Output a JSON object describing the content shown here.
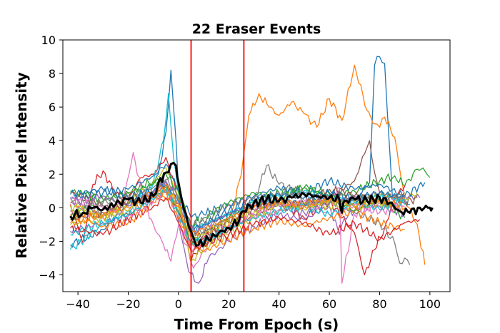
{
  "chart_data": {
    "type": "line",
    "title": "22 Eraser Events",
    "xlabel": "Time From Epoch (s)",
    "ylabel": "Relative Pixel Intensity",
    "xlim": [
      -46,
      108
    ],
    "ylim": [
      -5,
      10
    ],
    "xticks": [
      -40,
      -20,
      0,
      20,
      40,
      60,
      80,
      100
    ],
    "xtick_labels": [
      "−40",
      "−20",
      "0",
      "20",
      "40",
      "60",
      "80",
      "100"
    ],
    "yticks": [
      -4,
      -2,
      0,
      2,
      4,
      6,
      8,
      10
    ],
    "ytick_labels": [
      "−4",
      "−2",
      "0",
      "2",
      "4",
      "6",
      "8",
      "10"
    ],
    "grid": false,
    "vertical_lines": [
      {
        "x": 5,
        "color": "#ff0000"
      },
      {
        "x": 26,
        "color": "#ff0000"
      }
    ],
    "mean_series": {
      "name": "mean",
      "color": "#000000",
      "x": [
        -43,
        -38,
        -34,
        -30,
        -25,
        -20,
        -15,
        -10,
        -8,
        -5,
        -3,
        -1,
        0,
        2,
        4,
        6,
        8,
        12,
        16,
        20,
        24,
        26,
        30,
        35,
        40,
        45,
        50,
        55,
        60,
        64,
        65,
        66,
        70,
        75,
        80,
        84,
        88,
        92,
        96,
        100,
        101
      ],
      "y": [
        -0.5,
        -0.3,
        0.0,
        -0.1,
        0.2,
        0.5,
        0.3,
        0.7,
        1.5,
        2.1,
        2.6,
        2.5,
        1.5,
        0.0,
        -1.1,
        -1.8,
        -2.2,
        -1.9,
        -1.5,
        -1.2,
        -0.8,
        -0.2,
        0.3,
        0.5,
        0.4,
        0.6,
        0.8,
        0.7,
        0.6,
        0.5,
        -0.3,
        0.4,
        0.5,
        0.4,
        0.6,
        0.3,
        -0.2,
        -0.3,
        0.0,
        0.0,
        0.0
      ]
    },
    "series": [
      {
        "name": "event 1",
        "color": "#1f77b4",
        "x": [
          -43,
          -30,
          -20,
          -12,
          -8,
          -5,
          -3,
          -1,
          0,
          5,
          10,
          20,
          30,
          40,
          50,
          60,
          70,
          76,
          78,
          80,
          82,
          84,
          85,
          88,
          92
        ],
        "y": [
          -2.2,
          -1.3,
          0.2,
          1.0,
          2.0,
          4.5,
          8.2,
          4.0,
          1.2,
          -1.5,
          -1.0,
          -0.4,
          0.1,
          0.4,
          0.2,
          0.6,
          0.4,
          1.5,
          8.5,
          9.0,
          8.6,
          3.5,
          0.8,
          0.4,
          0.2
        ]
      },
      {
        "name": "event 2",
        "color": "#ff7f0e",
        "x": [
          -43,
          -30,
          -20,
          -10,
          0,
          5,
          10,
          20,
          25,
          28,
          32,
          36,
          40,
          45,
          50,
          55,
          60,
          65,
          70,
          75,
          78,
          80,
          82,
          86,
          90,
          95,
          98
        ],
        "y": [
          0.3,
          -0.6,
          0.6,
          0.9,
          0.2,
          -2.5,
          -2.0,
          -1.0,
          2.0,
          5.5,
          6.8,
          6.0,
          5.5,
          6.3,
          5.6,
          4.8,
          6.5,
          5.2,
          8.5,
          5.8,
          5.0,
          4.8,
          5.4,
          4.2,
          0.5,
          -1.0,
          -3.4
        ]
      },
      {
        "name": "event 3",
        "color": "#2ca02c",
        "x": [
          -43,
          -30,
          -20,
          -10,
          -5,
          0,
          5,
          10,
          20,
          30,
          40,
          50,
          60,
          70,
          80,
          86,
          90,
          95,
          98,
          100
        ],
        "y": [
          -0.6,
          0.4,
          0.9,
          1.6,
          1.1,
          -0.3,
          -2.2,
          -1.5,
          -0.6,
          0.3,
          0.9,
          1.2,
          0.7,
          1.0,
          1.6,
          1.9,
          1.3,
          2.3,
          2.2,
          1.8
        ]
      },
      {
        "name": "event 4",
        "color": "#d62728",
        "x": [
          -43,
          -38,
          -34,
          -30,
          -25,
          -20,
          -15,
          -10,
          -5,
          0,
          5,
          10,
          20,
          30,
          40,
          50,
          60,
          70,
          74,
          78,
          82,
          86,
          90
        ],
        "y": [
          0.2,
          -2.1,
          1.4,
          2.2,
          0.8,
          0.5,
          1.8,
          2.0,
          3.0,
          0.6,
          -3.2,
          -1.8,
          -0.8,
          0.1,
          0.3,
          -0.6,
          0.4,
          -1.5,
          -4.0,
          -2.5,
          -1.2,
          0.6,
          1.3
        ]
      },
      {
        "name": "event 5",
        "color": "#9467bd",
        "x": [
          -43,
          -30,
          -20,
          -10,
          -5,
          0,
          4,
          8,
          12,
          20,
          30,
          40,
          50,
          60,
          64,
          66,
          70,
          80,
          90,
          96
        ],
        "y": [
          -1.4,
          -0.9,
          -0.5,
          0.9,
          1.5,
          -0.8,
          -3.8,
          -4.5,
          -3.0,
          -2.0,
          -1.1,
          -0.4,
          -0.7,
          0.1,
          -1.6,
          -0.6,
          -0.2,
          0.4,
          0.7,
          0.6
        ]
      },
      {
        "name": "event 6",
        "color": "#8c564b",
        "x": [
          -43,
          -30,
          -20,
          -10,
          -5,
          0,
          5,
          10,
          20,
          30,
          40,
          50,
          60,
          70,
          74,
          76,
          78,
          80,
          85,
          90,
          95
        ],
        "y": [
          0.9,
          0.1,
          -0.4,
          0.4,
          0.9,
          0.5,
          -1.8,
          -2.1,
          -1.3,
          -0.4,
          0.3,
          0.1,
          0.6,
          1.6,
          3.2,
          4.0,
          2.1,
          0.9,
          0.6,
          0.3,
          0.6
        ]
      },
      {
        "name": "event 7",
        "color": "#e377c2",
        "x": [
          -43,
          -30,
          -22,
          -18,
          -14,
          -10,
          -6,
          -3,
          0,
          3,
          6,
          10,
          15,
          20,
          30,
          40,
          50,
          60,
          64,
          65,
          70,
          80,
          90
        ],
        "y": [
          -0.2,
          -0.6,
          0.4,
          3.3,
          0.5,
          -1.0,
          -2.2,
          -3.2,
          -1.0,
          -2.2,
          -3.6,
          -2.6,
          -1.6,
          -1.1,
          -0.3,
          0.2,
          0.1,
          0.6,
          1.2,
          -4.5,
          -0.4,
          0.3,
          0.1
        ]
      },
      {
        "name": "event 8",
        "color": "#7f7f7f",
        "x": [
          -43,
          -30,
          -20,
          -10,
          -5,
          0,
          5,
          10,
          20,
          30,
          35,
          40,
          50,
          60,
          70,
          80,
          86,
          88,
          90,
          92
        ],
        "y": [
          0.6,
          -0.3,
          0.2,
          0.9,
          1.6,
          0.4,
          -1.5,
          -1.4,
          -0.6,
          0.4,
          2.5,
          1.4,
          0.8,
          0.5,
          -0.3,
          -0.9,
          -2.1,
          -3.3,
          -3.0,
          -3.4
        ]
      },
      {
        "name": "event 9",
        "color": "#bcbd22",
        "x": [
          -43,
          -30,
          -20,
          -10,
          -5,
          0,
          5,
          10,
          20,
          30,
          40,
          50,
          60,
          70,
          80,
          90,
          95
        ],
        "y": [
          -1.0,
          -0.6,
          0.3,
          1.5,
          2.4,
          0.6,
          -3.2,
          -2.4,
          -1.6,
          -0.6,
          -0.2,
          0.3,
          0.1,
          0.4,
          0.8,
          0.5,
          0.9
        ]
      },
      {
        "name": "event 10",
        "color": "#17becf",
        "x": [
          -43,
          -30,
          -20,
          -10,
          -6,
          -4,
          -2,
          0,
          5,
          10,
          20,
          30,
          40,
          50,
          60,
          70,
          80,
          90
        ],
        "y": [
          -2.5,
          -1.0,
          -0.2,
          1.5,
          4.0,
          6.8,
          3.0,
          0.9,
          -1.2,
          -1.0,
          -0.4,
          0.3,
          0.7,
          1.0,
          0.7,
          0.3,
          0.6,
          0.2
        ]
      },
      {
        "name": "event 11",
        "color": "#1f77b4",
        "x": [
          -43,
          -30,
          -20,
          -10,
          -5,
          0,
          5,
          10,
          20,
          30,
          40,
          50,
          60,
          70,
          80,
          90,
          98
        ],
        "y": [
          0.6,
          0.9,
          1.1,
          1.9,
          2.6,
          1.0,
          -0.6,
          -0.4,
          0.2,
          0.7,
          1.2,
          0.9,
          1.6,
          1.1,
          1.4,
          0.7,
          1.5
        ]
      },
      {
        "name": "event 12",
        "color": "#ff7f0e",
        "x": [
          -43,
          -30,
          -20,
          -10,
          -5,
          0,
          5,
          10,
          20,
          30,
          40,
          50,
          60,
          70,
          80,
          90
        ],
        "y": [
          -0.4,
          -1.1,
          -0.9,
          0.3,
          1.0,
          -0.6,
          -2.2,
          -2.6,
          -1.9,
          -1.2,
          -0.8,
          -1.1,
          -0.6,
          -0.2,
          -0.9,
          -1.3
        ]
      },
      {
        "name": "event 13",
        "color": "#2ca02c",
        "x": [
          -43,
          -30,
          -20,
          -10,
          -5,
          0,
          5,
          10,
          20,
          30,
          40,
          50,
          60,
          70,
          80,
          90
        ],
        "y": [
          1.0,
          0.5,
          0.9,
          1.4,
          2.0,
          0.9,
          -1.0,
          -0.6,
          0.3,
          0.9,
          0.5,
          1.2,
          0.8,
          -0.2,
          0.5,
          -0.6
        ]
      },
      {
        "name": "event 14",
        "color": "#d62728",
        "x": [
          -43,
          -30,
          -20,
          -10,
          -5,
          0,
          5,
          10,
          20,
          30,
          40,
          50,
          60,
          70,
          80,
          90,
          96
        ],
        "y": [
          -1.2,
          -1.6,
          -0.7,
          0.1,
          0.6,
          -0.9,
          -2.6,
          -2.2,
          -1.6,
          -1.0,
          -0.6,
          -0.9,
          -1.6,
          -0.9,
          -1.9,
          -0.9,
          -0.7
        ]
      },
      {
        "name": "event 15",
        "color": "#9467bd",
        "x": [
          -43,
          -30,
          -20,
          -10,
          -5,
          0,
          5,
          10,
          20,
          30,
          40,
          50,
          60,
          70,
          80,
          90
        ],
        "y": [
          0.3,
          0.7,
          0.1,
          0.9,
          1.6,
          0.3,
          -1.4,
          -1.2,
          -0.3,
          0.2,
          0.1,
          -0.3,
          0.3,
          0.7,
          0.1,
          -0.3
        ]
      },
      {
        "name": "event 16",
        "color": "#8c564b",
        "x": [
          -43,
          -30,
          -20,
          -10,
          -5,
          0,
          5,
          10,
          20,
          30,
          40,
          50,
          60,
          70,
          80,
          90
        ],
        "y": [
          -0.7,
          -0.3,
          0.4,
          0.6,
          1.2,
          -0.2,
          -2.0,
          -1.6,
          -0.9,
          -0.1,
          0.4,
          0.2,
          1.1,
          0.7,
          0.4,
          0.9
        ]
      },
      {
        "name": "event 17",
        "color": "#e377c2",
        "x": [
          -43,
          -30,
          -20,
          -10,
          -5,
          0,
          5,
          10,
          20,
          30,
          40,
          50,
          60,
          70,
          80,
          90
        ],
        "y": [
          0.5,
          0.0,
          -0.5,
          0.4,
          1.0,
          -0.4,
          -2.5,
          -2.0,
          -1.1,
          -0.5,
          -0.1,
          0.4,
          -0.4,
          0.2,
          -0.3,
          0.3
        ]
      },
      {
        "name": "event 18",
        "color": "#7f7f7f",
        "x": [
          -43,
          -30,
          -20,
          -10,
          -5,
          0,
          5,
          10,
          20,
          30,
          40,
          50,
          60,
          70,
          80,
          90
        ],
        "y": [
          -0.2,
          0.3,
          0.7,
          1.2,
          1.7,
          0.6,
          -1.1,
          -0.8,
          0.2,
          0.6,
          0.9,
          0.6,
          0.2,
          0.6,
          0.9,
          0.4
        ]
      },
      {
        "name": "event 19",
        "color": "#bcbd22",
        "x": [
          -43,
          -30,
          -20,
          -10,
          -5,
          0,
          5,
          10,
          20,
          30,
          40,
          50,
          60,
          70,
          80,
          90
        ],
        "y": [
          0.1,
          -0.5,
          -0.2,
          0.7,
          1.3,
          0.0,
          -1.8,
          -1.6,
          -0.8,
          -0.3,
          0.2,
          -0.1,
          0.4,
          0.0,
          0.3,
          -0.2
        ]
      },
      {
        "name": "event 20",
        "color": "#17becf",
        "x": [
          -43,
          -30,
          -20,
          -10,
          -5,
          0,
          5,
          10,
          20,
          30,
          40,
          50,
          60,
          70,
          80,
          90
        ],
        "y": [
          -1.6,
          -0.9,
          -0.4,
          0.5,
          1.2,
          -0.3,
          -2.1,
          -1.9,
          -1.2,
          -0.6,
          -0.2,
          0.1,
          -0.4,
          0.3,
          -0.1,
          0.5
        ]
      },
      {
        "name": "event 21",
        "color": "#1f77b4",
        "x": [
          -43,
          -30,
          -20,
          -10,
          -5,
          0,
          5,
          10,
          20,
          30,
          40,
          50,
          60,
          70,
          80,
          90
        ],
        "y": [
          0.8,
          1.1,
          0.6,
          1.0,
          1.4,
          0.4,
          -1.3,
          -1.0,
          -0.2,
          0.4,
          0.8,
          0.6,
          0.9,
          0.5,
          0.9,
          0.6
        ]
      },
      {
        "name": "event 22",
        "color": "#ff7f0e",
        "x": [
          -43,
          -30,
          -20,
          -10,
          -5,
          0,
          5,
          10,
          20,
          30,
          40,
          50,
          60,
          70,
          80,
          90
        ],
        "y": [
          -0.9,
          -0.4,
          0.0,
          0.8,
          1.4,
          0.1,
          -1.6,
          -1.3,
          -0.6,
          0.0,
          0.4,
          0.1,
          0.5,
          0.1,
          0.5,
          0.0
        ]
      }
    ]
  }
}
